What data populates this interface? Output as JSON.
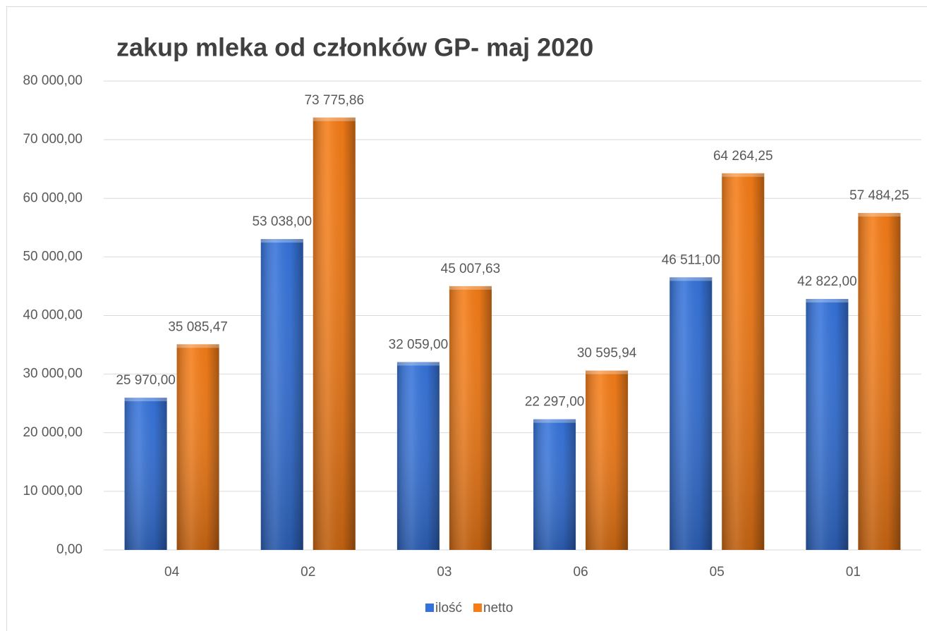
{
  "chart_data": {
    "type": "bar",
    "title": "zakup mleka od członków GP- maj 2020",
    "categories": [
      "04",
      "02",
      "03",
      "06",
      "05",
      "01"
    ],
    "series": [
      {
        "name": "ilość",
        "color": "#3573db",
        "values": [
          25970,
          53038,
          32059,
          22297,
          46511,
          42822
        ],
        "value_labels": [
          "25 970,00",
          "53 038,00",
          "32 059,00",
          "22 297,00",
          "46 511,00",
          "42 822,00"
        ]
      },
      {
        "name": "netto",
        "color": "#f57c16",
        "values": [
          35085.47,
          73775.86,
          45007.63,
          30595.94,
          64264.25,
          57484.25
        ],
        "value_labels": [
          "35 085,47",
          "73 775,86",
          "45 007,63",
          "30 595,94",
          "64 264,25",
          "57 484,25"
        ]
      }
    ],
    "ylim": [
      0,
      80000
    ],
    "yticks": [
      {
        "value": 0,
        "label": "0,00"
      },
      {
        "value": 10000,
        "label": "10 000,00"
      },
      {
        "value": 20000,
        "label": "20 000,00"
      },
      {
        "value": 30000,
        "label": "30 000,00"
      },
      {
        "value": 40000,
        "label": "40 000,00"
      },
      {
        "value": 50000,
        "label": "50 000,00"
      },
      {
        "value": 60000,
        "label": "60 000,00"
      },
      {
        "value": 70000,
        "label": "70 000,00"
      },
      {
        "value": 80000,
        "label": "80 000,00"
      }
    ],
    "grid": true,
    "legend": "bottom"
  }
}
